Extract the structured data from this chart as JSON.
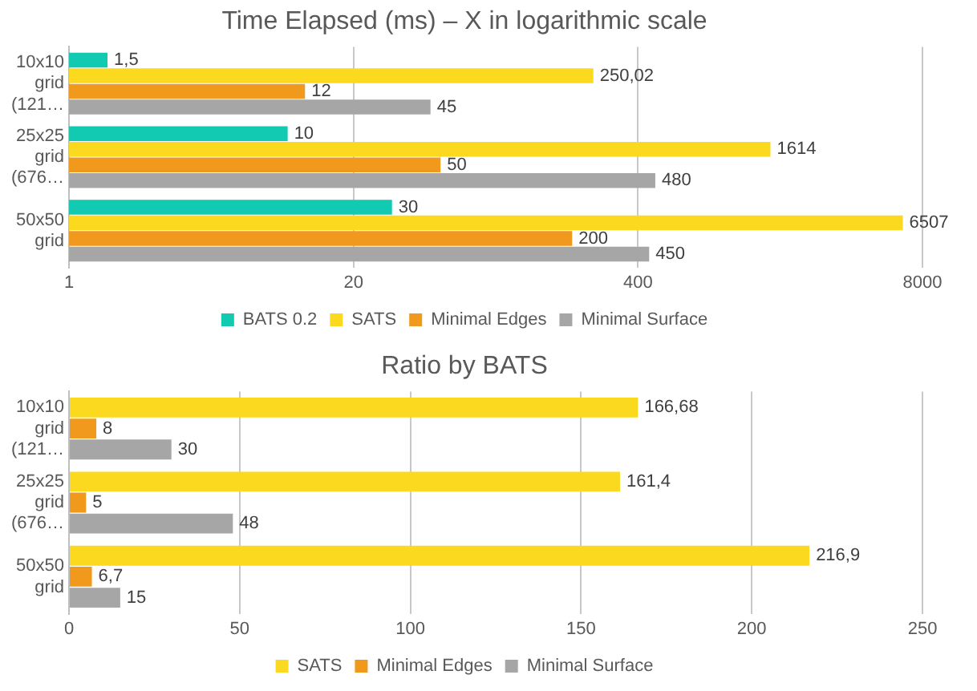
{
  "chart_data": [
    {
      "type": "bar",
      "orientation": "horizontal",
      "title": "Time Elapsed (ms) – X in logarithmic scale",
      "log": "x",
      "categories": [
        "10x10 grid (121…",
        "25x25 grid (676…",
        "50x50 grid"
      ],
      "series": [
        {
          "name": "BATS 0.2",
          "color": "#12c9b1",
          "values": [
            1.5,
            10,
            30
          ],
          "value_labels": [
            "1,5",
            "10",
            "30"
          ]
        },
        {
          "name": "SATS",
          "color": "#fad91e",
          "values": [
            250.02,
            1614,
            6507
          ],
          "value_labels": [
            "250,02",
            "1614",
            "6507"
          ]
        },
        {
          "name": "Minimal Edges",
          "color": "#f0991c",
          "values": [
            12,
            50,
            200
          ],
          "value_labels": [
            "12",
            "50",
            "200"
          ]
        },
        {
          "name": "Minimal Surface",
          "color": "#a6a6a6",
          "values": [
            45,
            480,
            450
          ],
          "value_labels": [
            "45",
            "480",
            "450"
          ]
        }
      ],
      "xlim": [
        1,
        8000
      ],
      "xticks": [
        1,
        20,
        400,
        8000
      ],
      "grid": "x",
      "legend": "bottom"
    },
    {
      "type": "bar",
      "orientation": "horizontal",
      "title": "Ratio by BATS",
      "categories": [
        "10x10 grid (121…",
        "25x25 grid (676…",
        "50x50 grid"
      ],
      "series": [
        {
          "name": "SATS",
          "color": "#fad91e",
          "values": [
            166.68,
            161.4,
            216.9
          ],
          "value_labels": [
            "166,68",
            "161,4",
            "216,9"
          ]
        },
        {
          "name": "Minimal Edges",
          "color": "#f0991c",
          "values": [
            8,
            5,
            6.7
          ],
          "value_labels": [
            "8",
            "5",
            "6,7"
          ]
        },
        {
          "name": "Minimal Surface",
          "color": "#a6a6a6",
          "values": [
            30,
            48,
            15
          ],
          "value_labels": [
            "30",
            "48",
            "15"
          ]
        }
      ],
      "xlim": [
        0,
        250
      ],
      "xticks": [
        0,
        50,
        100,
        150,
        200,
        250
      ],
      "grid": "x",
      "legend": "bottom"
    }
  ]
}
